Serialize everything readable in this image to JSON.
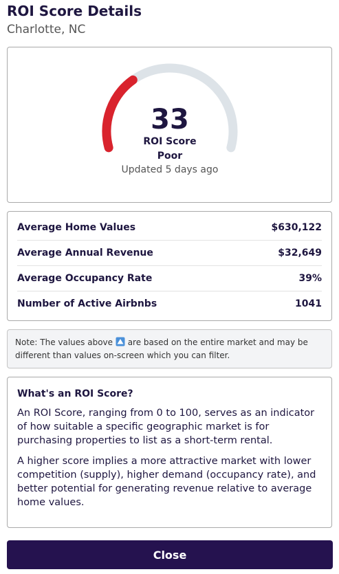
{
  "header": {
    "title": "ROI Score Details",
    "subtitle": "Charlotte, NC"
  },
  "score": {
    "value": 33,
    "range": [
      0,
      100
    ],
    "label": "ROI Score",
    "rating": "Poor",
    "updated": "Updated 5 days ago"
  },
  "metrics": [
    {
      "label": "Average Home Values",
      "value": "$630,122"
    },
    {
      "label": "Average Annual Revenue",
      "value": "$32,649"
    },
    {
      "label": "Average Occupancy Rate",
      "value": "39%"
    },
    {
      "label": "Number of Active Airbnbs",
      "value": "1041"
    }
  ],
  "note": {
    "before": "Note: The values above",
    "after": "are based on the entire market and may be different than values on-screen which you can filter."
  },
  "info": {
    "heading": "What's an ROI Score?",
    "paragraphs": [
      "An ROI Score, ranging from 0 to 100, serves as an indicator of how suitable a specific geographic market is for purchasing properties to list as a short-term rental.",
      "A higher score implies a more attractive market with lower competition (supply), higher demand (occupancy rate), and better potential for generating revenue relative to average home values."
    ]
  },
  "button": "Close"
}
